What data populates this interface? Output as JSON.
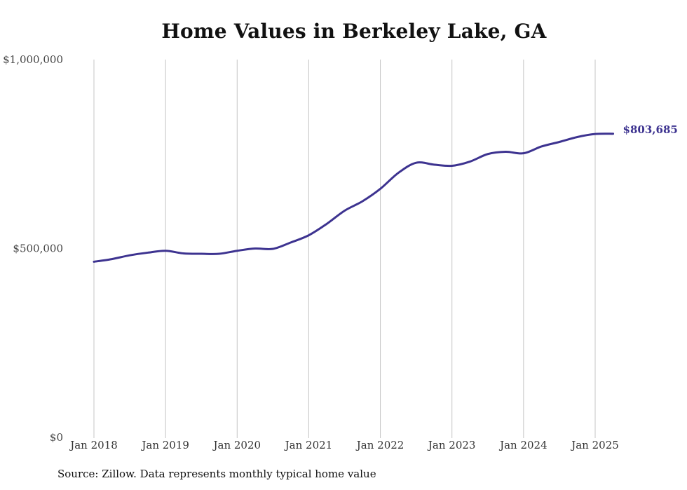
{
  "chart_data": {
    "type": "line",
    "title": "Home Values in Berkeley Lake, GA",
    "xlabel": "",
    "ylabel": "",
    "ylim": [
      0,
      1000000
    ],
    "x_range": [
      "2018-01",
      "2025-04"
    ],
    "grid": "vertical",
    "yticks": [
      {
        "value": 0,
        "label": "$0"
      },
      {
        "value": 500000,
        "label": "$500,000"
      },
      {
        "value": 1000000,
        "label": "$1,000,000"
      }
    ],
    "xticks": [
      {
        "value": "2018-01",
        "label": "Jan 2018"
      },
      {
        "value": "2019-01",
        "label": "Jan 2019"
      },
      {
        "value": "2020-01",
        "label": "Jan 2020"
      },
      {
        "value": "2021-01",
        "label": "Jan 2021"
      },
      {
        "value": "2022-01",
        "label": "Jan 2022"
      },
      {
        "value": "2023-01",
        "label": "Jan 2023"
      },
      {
        "value": "2024-01",
        "label": "Jan 2024"
      },
      {
        "value": "2025-01",
        "label": "Jan 2025"
      }
    ],
    "series": [
      {
        "color": "#3d3390",
        "points": [
          {
            "x": "2018-01",
            "y": 465000
          },
          {
            "x": "2018-04",
            "y": 472000
          },
          {
            "x": "2018-07",
            "y": 482000
          },
          {
            "x": "2018-10",
            "y": 489000
          },
          {
            "x": "2019-01",
            "y": 494000
          },
          {
            "x": "2019-04",
            "y": 487000
          },
          {
            "x": "2019-07",
            "y": 486000
          },
          {
            "x": "2019-10",
            "y": 486000
          },
          {
            "x": "2020-01",
            "y": 494000
          },
          {
            "x": "2020-04",
            "y": 500000
          },
          {
            "x": "2020-07",
            "y": 499000
          },
          {
            "x": "2020-10",
            "y": 516000
          },
          {
            "x": "2021-01",
            "y": 535000
          },
          {
            "x": "2021-04",
            "y": 565000
          },
          {
            "x": "2021-07",
            "y": 600000
          },
          {
            "x": "2021-10",
            "y": 625000
          },
          {
            "x": "2022-01",
            "y": 658000
          },
          {
            "x": "2022-04",
            "y": 700000
          },
          {
            "x": "2022-07",
            "y": 727000
          },
          {
            "x": "2022-10",
            "y": 722000
          },
          {
            "x": "2023-01",
            "y": 719000
          },
          {
            "x": "2023-04",
            "y": 730000
          },
          {
            "x": "2023-07",
            "y": 750000
          },
          {
            "x": "2023-10",
            "y": 756000
          },
          {
            "x": "2024-01",
            "y": 752000
          },
          {
            "x": "2024-04",
            "y": 770000
          },
          {
            "x": "2024-07",
            "y": 782000
          },
          {
            "x": "2024-10",
            "y": 795000
          },
          {
            "x": "2025-01",
            "y": 803000
          },
          {
            "x": "2025-04",
            "y": 803685
          }
        ],
        "end_label": "$803,685"
      }
    ],
    "source": "Source: Zillow. Data represents monthly typical home value"
  }
}
